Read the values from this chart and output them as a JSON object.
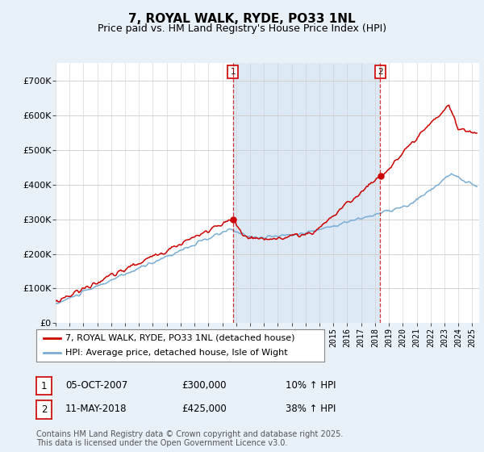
{
  "title": "7, ROYAL WALK, RYDE, PO33 1NL",
  "subtitle": "Price paid vs. HM Land Registry's House Price Index (HPI)",
  "ylim": [
    0,
    750000
  ],
  "yticks": [
    0,
    100000,
    200000,
    300000,
    400000,
    500000,
    600000,
    700000
  ],
  "ytick_labels": [
    "£0",
    "£100K",
    "£200K",
    "£300K",
    "£400K",
    "£500K",
    "£600K",
    "£700K"
  ],
  "xlim_start": 1995.0,
  "xlim_end": 2025.5,
  "fig_bg_color": "#e8f0f8",
  "plot_bg_color": "#ffffff",
  "shade_bg_color": "#dce9f5",
  "red_line_color": "#cc0000",
  "blue_line_color": "#7aadd4",
  "vline_color": "#cc0000",
  "marker1_x": 2007.77,
  "marker2_x": 2018.37,
  "purchase1_date": "05-OCT-2007",
  "purchase1_price": "£300,000",
  "purchase1_hpi": "10% ↑ HPI",
  "purchase2_date": "11-MAY-2018",
  "purchase2_price": "£425,000",
  "purchase2_hpi": "38% ↑ HPI",
  "legend_line1": "7, ROYAL WALK, RYDE, PO33 1NL (detached house)",
  "legend_line2": "HPI: Average price, detached house, Isle of Wight",
  "footer": "Contains HM Land Registry data © Crown copyright and database right 2025.\nThis data is licensed under the Open Government Licence v3.0.",
  "title_fontsize": 11,
  "subtitle_fontsize": 9,
  "axis_fontsize": 8,
  "legend_fontsize": 8,
  "footer_fontsize": 7
}
